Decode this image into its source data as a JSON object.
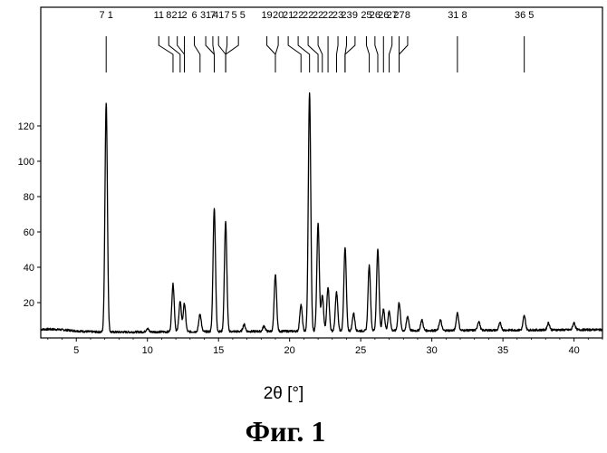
{
  "chart_data": {
    "type": "line",
    "title": "",
    "xlabel": "2θ [°]",
    "ylabel": "",
    "xlim": [
      2.5,
      42
    ],
    "ylim": [
      0,
      140
    ],
    "x_ticks": [
      5,
      10,
      15,
      20,
      25,
      30,
      35,
      40
    ],
    "y_ticks": [
      20,
      40,
      60,
      80,
      100,
      120
    ],
    "grid": false,
    "legend": "none",
    "series_color": "#000000",
    "peaks": [
      {
        "x": 7.1,
        "y": 130
      },
      {
        "x": 10.0,
        "y": 2
      },
      {
        "x": 11.8,
        "y": 27
      },
      {
        "x": 12.3,
        "y": 17
      },
      {
        "x": 12.6,
        "y": 16
      },
      {
        "x": 13.7,
        "y": 10
      },
      {
        "x": 14.7,
        "y": 70
      },
      {
        "x": 15.5,
        "y": 62
      },
      {
        "x": 16.8,
        "y": 4
      },
      {
        "x": 18.2,
        "y": 3
      },
      {
        "x": 19.0,
        "y": 32
      },
      {
        "x": 20.8,
        "y": 15
      },
      {
        "x": 21.4,
        "y": 135
      },
      {
        "x": 22.0,
        "y": 61
      },
      {
        "x": 22.3,
        "y": 20
      },
      {
        "x": 22.7,
        "y": 25
      },
      {
        "x": 23.3,
        "y": 22
      },
      {
        "x": 23.9,
        "y": 47
      },
      {
        "x": 24.5,
        "y": 10
      },
      {
        "x": 25.6,
        "y": 37
      },
      {
        "x": 26.2,
        "y": 46
      },
      {
        "x": 26.6,
        "y": 12
      },
      {
        "x": 27.0,
        "y": 11
      },
      {
        "x": 27.7,
        "y": 16
      },
      {
        "x": 28.3,
        "y": 8
      },
      {
        "x": 29.3,
        "y": 6
      },
      {
        "x": 30.6,
        "y": 6
      },
      {
        "x": 31.8,
        "y": 10
      },
      {
        "x": 33.3,
        "y": 5
      },
      {
        "x": 34.8,
        "y": 4
      },
      {
        "x": 36.5,
        "y": 8
      },
      {
        "x": 38.2,
        "y": 4
      },
      {
        "x": 40.0,
        "y": 4
      }
    ],
    "peak_labels": [
      {
        "text": "7 1",
        "x": 7.1,
        "label_x": 7.1
      },
      {
        "text": "11",
        "x": 11.8,
        "label_x": 10.8
      },
      {
        "text": "8",
        "x": 12.3,
        "label_x": 11.5
      },
      {
        "text": "21",
        "x": 12.6,
        "label_x": 12.1
      },
      {
        "text": "2",
        "x": 12.6,
        "label_x": 12.6
      },
      {
        "text": "6",
        "x": 13.7,
        "label_x": 13.3
      },
      {
        "text": "31",
        "x": 14.7,
        "label_x": 14.1
      },
      {
        "text": "7",
        "x": 14.7,
        "label_x": 14.6
      },
      {
        "text": "41",
        "x": 15.5,
        "label_x": 15.0
      },
      {
        "text": "7",
        "x": 15.5,
        "label_x": 15.6
      },
      {
        "text": "5 5",
        "x": 15.5,
        "label_x": 16.4
      },
      {
        "text": "19",
        "x": 19.0,
        "label_x": 18.4
      },
      {
        "text": "20",
        "x": 19.0,
        "label_x": 19.2
      },
      {
        "text": "21",
        "x": 20.8,
        "label_x": 19.9
      },
      {
        "text": "22",
        "x": 21.4,
        "label_x": 20.6
      },
      {
        "text": "22",
        "x": 22.0,
        "label_x": 21.3
      },
      {
        "text": "22",
        "x": 22.3,
        "label_x": 22.0
      },
      {
        "text": "22",
        "x": 22.7,
        "label_x": 22.7
      },
      {
        "text": "23",
        "x": 23.3,
        "label_x": 23.4
      },
      {
        "text": "23",
        "x": 23.9,
        "label_x": 24.0
      },
      {
        "text": "9",
        "x": 23.9,
        "label_x": 24.6
      },
      {
        "text": "25",
        "x": 25.6,
        "label_x": 25.4
      },
      {
        "text": "26",
        "x": 26.2,
        "label_x": 26.0
      },
      {
        "text": "26",
        "x": 26.6,
        "label_x": 26.6
      },
      {
        "text": "27",
        "x": 27.0,
        "label_x": 27.2
      },
      {
        "text": "27",
        "x": 27.7,
        "label_x": 27.7
      },
      {
        "text": "8",
        "x": 27.7,
        "label_x": 28.3
      },
      {
        "text": "31 8",
        "x": 31.8,
        "label_x": 31.8
      },
      {
        "text": "36 5",
        "x": 36.5,
        "label_x": 36.5
      }
    ]
  },
  "caption": "Фиг.  1"
}
